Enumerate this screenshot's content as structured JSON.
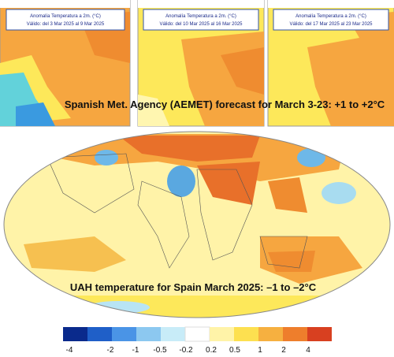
{
  "panels": [
    {
      "title": "Anomalía Temperatura a 2m. (°C)",
      "subtitle": "Válido: del 3 Mar 2025 al 9 Mar 2025"
    },
    {
      "title": "Anomalía Temperatura a 2m. (°C)",
      "subtitle": "Válido: del 10 Mar 2025 al 16 Mar 2025"
    },
    {
      "title": "Anomalía Temperatura a 2m. (°C)",
      "subtitle": "Válido: del 17 Mar 2025 al 23 Mar 2025"
    }
  ],
  "forecast_caption": "Spanish Met. Agency (AEMET) forecast for March 3-23: +1 to +2°C",
  "world_map_caption": "UAH temperature for Spain March 2025: –1 to –2°C",
  "color_scale": {
    "labels": [
      -4,
      -2,
      -1,
      -0.5,
      -0.2,
      0.2,
      0.5,
      1,
      2,
      4
    ]
  }
}
